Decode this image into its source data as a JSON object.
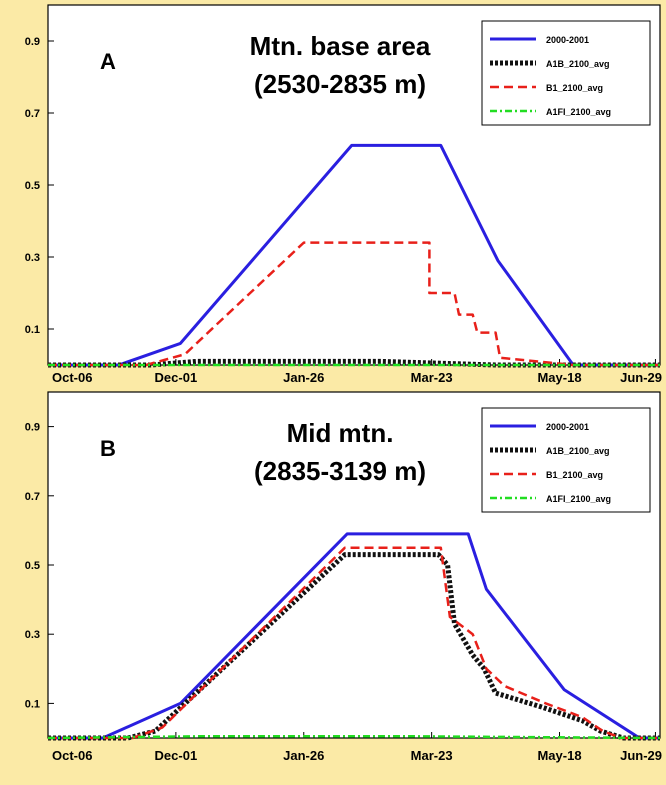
{
  "colors": {
    "background": "#fbeaa6",
    "plot_bg": "#ffffff",
    "blue": "#2a1fe0",
    "black": "#111111",
    "red": "#e8201a",
    "green": "#22dd22"
  },
  "chart_data": [
    {
      "type": "line",
      "panel_letter": "A",
      "title": "Mtn. base area",
      "subtitle": "(2530-2835 m)",
      "x_tick_labels": [
        "Oct-06",
        "Dec-01",
        "Jan-26",
        "Mar-23",
        "May-18",
        "Jun-29"
      ],
      "x_tick_dates": [
        "2000-10-06",
        "2000-12-01",
        "2001-01-26",
        "2001-03-23",
        "2001-05-18",
        "2001-06-29"
      ],
      "xlim": [
        "2000-10-06",
        "2001-07-01"
      ],
      "ylim": [
        0,
        1.0
      ],
      "y_ticks": [
        0.1,
        0.3,
        0.5,
        0.7,
        0.9
      ],
      "y_tick_labels": [
        "0.1",
        "0.3",
        "0.5",
        "0.7",
        "0.9"
      ],
      "legend": "top-right",
      "series": [
        {
          "name": "2000-2001",
          "color": "#2a1fe0",
          "style": "solid",
          "x": [
            "2000-10-06",
            "2000-11-06",
            "2000-12-03",
            "2001-02-16",
            "2001-03-27",
            "2001-04-21",
            "2001-05-24",
            "2001-07-01"
          ],
          "y": [
            0,
            0,
            0.06,
            0.61,
            0.61,
            0.29,
            0,
            0
          ]
        },
        {
          "name": "A1B_2100_avg",
          "color": "#111111",
          "style": "dotted",
          "x": [
            "2000-10-06",
            "2000-11-20",
            "2000-12-10",
            "2001-03-01",
            "2001-04-20",
            "2001-07-01"
          ],
          "y": [
            0,
            0,
            0.01,
            0.01,
            0,
            0
          ]
        },
        {
          "name": "B1_2100_avg",
          "color": "#e8201a",
          "style": "dashed",
          "x": [
            "2000-10-06",
            "2000-11-18",
            "2000-12-05",
            "2001-01-26",
            "2001-03-22",
            "2001-03-22",
            "2001-04-02",
            "2001-04-04",
            "2001-04-10",
            "2001-04-12",
            "2001-04-20",
            "2001-04-22",
            "2001-05-24",
            "2001-07-01"
          ],
          "y": [
            0,
            0,
            0.03,
            0.34,
            0.34,
            0.2,
            0.2,
            0.14,
            0.14,
            0.09,
            0.09,
            0.02,
            0,
            0
          ]
        },
        {
          "name": "A1FI_2100_avg",
          "color": "#22dd22",
          "style": "dashdot",
          "x": [
            "2000-10-06",
            "2001-07-01"
          ],
          "y": [
            0,
            0
          ]
        }
      ]
    },
    {
      "type": "line",
      "panel_letter": "B",
      "title": "Mid mtn.",
      "subtitle": "(2835-3139 m)",
      "x_tick_labels": [
        "Oct-06",
        "Dec-01",
        "Jan-26",
        "Mar-23",
        "May-18",
        "Jun-29"
      ],
      "x_tick_dates": [
        "2000-10-06",
        "2000-12-01",
        "2001-01-26",
        "2001-03-23",
        "2001-05-18",
        "2001-06-29"
      ],
      "xlim": [
        "2000-10-06",
        "2001-07-01"
      ],
      "ylim": [
        0,
        1.0
      ],
      "y_ticks": [
        0.1,
        0.3,
        0.5,
        0.7,
        0.9
      ],
      "y_tick_labels": [
        "0.1",
        "0.3",
        "0.5",
        "0.7",
        "0.9"
      ],
      "legend": "top-right",
      "series": [
        {
          "name": "2000-2001",
          "color": "#2a1fe0",
          "style": "solid",
          "x": [
            "2000-10-06",
            "2000-10-30",
            "2000-12-03",
            "2001-02-14",
            "2001-04-08",
            "2001-04-16",
            "2001-05-20",
            "2001-06-22",
            "2001-07-01"
          ],
          "y": [
            0,
            0,
            0.1,
            0.59,
            0.59,
            0.43,
            0.14,
            0,
            0
          ]
        },
        {
          "name": "A1B_2100_avg",
          "color": "#111111",
          "style": "dotted",
          "x": [
            "2000-10-06",
            "2000-11-10",
            "2000-11-22",
            "2001-02-13",
            "2001-03-26",
            "2001-03-30",
            "2001-04-02",
            "2001-04-10",
            "2001-04-15",
            "2001-04-20",
            "2001-05-10",
            "2001-05-28",
            "2001-06-05",
            "2001-06-15",
            "2001-07-01"
          ],
          "y": [
            0,
            0,
            0.02,
            0.53,
            0.53,
            0.5,
            0.33,
            0.24,
            0.2,
            0.13,
            0.09,
            0.05,
            0.02,
            0,
            0
          ]
        },
        {
          "name": "B1_2100_avg",
          "color": "#e8201a",
          "style": "dashed",
          "x": [
            "2000-10-06",
            "2000-11-12",
            "2000-11-25",
            "2001-02-13",
            "2001-03-27",
            "2001-03-31",
            "2001-04-10",
            "2001-04-16",
            "2001-04-24",
            "2001-05-12",
            "2001-05-28",
            "2001-06-06",
            "2001-06-14",
            "2001-07-01"
          ],
          "y": [
            0,
            0,
            0.03,
            0.55,
            0.55,
            0.35,
            0.3,
            0.2,
            0.15,
            0.1,
            0.06,
            0.02,
            0,
            0
          ]
        },
        {
          "name": "A1FI_2100_avg",
          "color": "#22dd22",
          "style": "dashdot",
          "x": [
            "2000-10-06",
            "2000-12-10",
            "2001-03-15",
            "2001-07-01"
          ],
          "y": [
            0,
            0.005,
            0.005,
            0
          ]
        }
      ]
    }
  ]
}
